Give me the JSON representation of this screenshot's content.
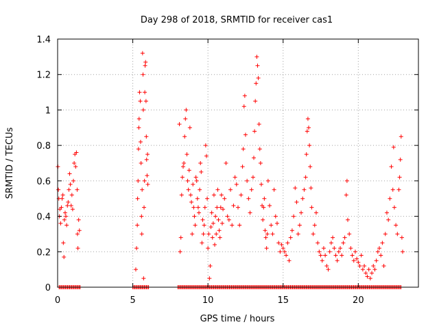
{
  "chart_data": {
    "type": "scatter",
    "title": "Day 298 of 2018, SRMTID for receiver cas1",
    "xlabel": "GPS time / hours",
    "ylabel": "SRMTID / TECUs",
    "xlim": [
      0,
      24
    ],
    "ylim": [
      0,
      1.4
    ],
    "xticks": [
      0,
      5,
      10,
      15,
      20
    ],
    "xtick_labels": [
      "0",
      "5",
      "10",
      "15",
      "20"
    ],
    "yticks": [
      0,
      0.2,
      0.4,
      0.6,
      0.8,
      1,
      1.2,
      1.4
    ],
    "ytick_labels": [
      "0",
      "0.2",
      "0.4",
      "0.6",
      "0.8",
      "1",
      "1.2",
      "1.4"
    ],
    "grid": true,
    "marker": "+",
    "color": "#ff0000",
    "series": [
      {
        "name": "SRMTID",
        "points": [
          [
            0.02,
            0.68
          ],
          [
            0.05,
            0.55
          ],
          [
            0.08,
            0.5
          ],
          [
            0.12,
            0.4
          ],
          [
            0.15,
            0.44
          ],
          [
            0.2,
            0.36
          ],
          [
            0.25,
            0.45
          ],
          [
            0.3,
            0.5
          ],
          [
            0.35,
            0.52
          ],
          [
            0.38,
            0.25
          ],
          [
            0.42,
            0.17
          ],
          [
            0.45,
            0.38
          ],
          [
            0.5,
            0.42
          ],
          [
            0.55,
            0.4
          ],
          [
            0.6,
            0.35
          ],
          [
            0.65,
            0.46
          ],
          [
            0.7,
            0.48
          ],
          [
            0.75,
            0.55
          ],
          [
            0.8,
            0.64
          ],
          [
            0.85,
            0.58
          ],
          [
            0.9,
            0.46
          ],
          [
            0.95,
            0.52
          ],
          [
            1.0,
            0.44
          ],
          [
            1.05,
            0.6
          ],
          [
            1.1,
            0.7
          ],
          [
            1.15,
            0.75
          ],
          [
            1.2,
            0.68
          ],
          [
            1.25,
            0.76
          ],
          [
            1.3,
            0.55
          ],
          [
            1.32,
            0.3
          ],
          [
            1.35,
            0.22
          ],
          [
            1.4,
            0.38
          ],
          [
            1.45,
            0.32
          ],
          [
            5.2,
            0.1
          ],
          [
            5.25,
            0.22
          ],
          [
            5.3,
            0.35
          ],
          [
            5.32,
            0.5
          ],
          [
            5.35,
            0.6
          ],
          [
            5.38,
            0.78
          ],
          [
            5.4,
            0.9
          ],
          [
            5.42,
            0.95
          ],
          [
            5.45,
            1.1
          ],
          [
            5.5,
            1.05
          ],
          [
            5.52,
            0.82
          ],
          [
            5.55,
            0.7
          ],
          [
            5.58,
            0.4
          ],
          [
            5.6,
            0.3
          ],
          [
            5.62,
            0.55
          ],
          [
            5.65,
            1.32
          ],
          [
            5.68,
            1.2
          ],
          [
            5.7,
            1.0
          ],
          [
            5.72,
            0.05
          ],
          [
            5.75,
            0.45
          ],
          [
            5.78,
            0.6
          ],
          [
            5.8,
            1.1
          ],
          [
            5.82,
            1.25
          ],
          [
            5.85,
            1.27
          ],
          [
            5.88,
            1.05
          ],
          [
            5.9,
            0.85
          ],
          [
            5.92,
            0.72
          ],
          [
            5.95,
            0.63
          ],
          [
            5.98,
            0.75
          ],
          [
            6.0,
            0.58
          ],
          [
            8.1,
            0.92
          ],
          [
            8.15,
            0.2
          ],
          [
            8.2,
            0.28
          ],
          [
            8.25,
            0.52
          ],
          [
            8.3,
            0.62
          ],
          [
            8.35,
            0.68
          ],
          [
            8.4,
            0.7
          ],
          [
            8.45,
            0.85
          ],
          [
            8.5,
            0.95
          ],
          [
            8.55,
            1.0
          ],
          [
            8.6,
            0.75
          ],
          [
            8.65,
            0.6
          ],
          [
            8.7,
            0.55
          ],
          [
            8.75,
            0.66
          ],
          [
            8.8,
            0.9
          ],
          [
            8.85,
            0.52
          ],
          [
            8.9,
            0.48
          ],
          [
            8.95,
            0.3
          ],
          [
            9.0,
            0.58
          ],
          [
            9.05,
            0.45
          ],
          [
            9.1,
            0.4
          ],
          [
            9.15,
            0.35
          ],
          [
            9.2,
            0.62
          ],
          [
            9.25,
            0.6
          ],
          [
            9.3,
            0.5
          ],
          [
            9.35,
            0.45
          ],
          [
            9.4,
            0.42
          ],
          [
            9.45,
            0.55
          ],
          [
            9.5,
            0.7
          ],
          [
            9.55,
            0.65
          ],
          [
            9.6,
            0.25
          ],
          [
            9.65,
            0.38
          ],
          [
            9.7,
            0.3
          ],
          [
            9.75,
            0.35
          ],
          [
            9.8,
            0.45
          ],
          [
            9.85,
            0.8
          ],
          [
            9.9,
            0.74
          ],
          [
            9.95,
            0.5
          ],
          [
            10.0,
            0.22
          ],
          [
            10.05,
            0.3
          ],
          [
            10.1,
            0.05
          ],
          [
            10.15,
            0.12
          ],
          [
            10.2,
            0.34
          ],
          [
            10.25,
            0.42
          ],
          [
            10.3,
            0.28
          ],
          [
            10.35,
            0.36
          ],
          [
            10.4,
            0.52
          ],
          [
            10.45,
            0.24
          ],
          [
            10.5,
            0.4
          ],
          [
            10.55,
            0.3
          ],
          [
            10.6,
            0.45
          ],
          [
            10.65,
            0.55
          ],
          [
            10.7,
            0.38
          ],
          [
            10.75,
            0.32
          ],
          [
            10.8,
            0.28
          ],
          [
            10.85,
            0.45
          ],
          [
            10.9,
            0.52
          ],
          [
            10.95,
            0.36
          ],
          [
            11.0,
            0.44
          ],
          [
            11.1,
            0.5
          ],
          [
            11.2,
            0.7
          ],
          [
            11.3,
            0.4
          ],
          [
            11.4,
            0.38
          ],
          [
            11.5,
            0.55
          ],
          [
            11.6,
            0.35
          ],
          [
            11.7,
            0.46
          ],
          [
            11.8,
            0.62
          ],
          [
            11.9,
            0.58
          ],
          [
            12.0,
            0.45
          ],
          [
            12.1,
            0.35
          ],
          [
            12.2,
            0.52
          ],
          [
            12.3,
            0.68
          ],
          [
            12.35,
            0.78
          ],
          [
            12.4,
            1.02
          ],
          [
            12.45,
            1.08
          ],
          [
            12.5,
            0.86
          ],
          [
            12.6,
            0.6
          ],
          [
            12.7,
            0.5
          ],
          [
            12.8,
            0.42
          ],
          [
            12.9,
            0.55
          ],
          [
            13.0,
            0.62
          ],
          [
            13.05,
            0.73
          ],
          [
            13.1,
            0.88
          ],
          [
            13.15,
            1.05
          ],
          [
            13.2,
            1.15
          ],
          [
            13.25,
            1.3
          ],
          [
            13.3,
            1.25
          ],
          [
            13.35,
            1.18
          ],
          [
            13.4,
            0.92
          ],
          [
            13.45,
            0.78
          ],
          [
            13.5,
            0.7
          ],
          [
            13.55,
            0.58
          ],
          [
            13.6,
            0.46
          ],
          [
            13.65,
            0.38
          ],
          [
            13.7,
            0.45
          ],
          [
            13.75,
            0.5
          ],
          [
            13.8,
            0.32
          ],
          [
            13.85,
            0.28
          ],
          [
            13.9,
            0.22
          ],
          [
            13.95,
            0.3
          ],
          [
            14.0,
            0.6
          ],
          [
            14.1,
            0.46
          ],
          [
            14.2,
            0.35
          ],
          [
            14.3,
            0.3
          ],
          [
            14.4,
            0.55
          ],
          [
            14.5,
            0.4
          ],
          [
            14.6,
            0.36
          ],
          [
            14.7,
            0.25
          ],
          [
            14.8,
            0.2
          ],
          [
            14.9,
            0.24
          ],
          [
            15.0,
            0.22
          ],
          [
            15.1,
            0.2
          ],
          [
            15.2,
            0.18
          ],
          [
            15.3,
            0.25
          ],
          [
            15.4,
            0.15
          ],
          [
            15.5,
            0.28
          ],
          [
            15.6,
            0.32
          ],
          [
            15.7,
            0.4
          ],
          [
            15.8,
            0.56
          ],
          [
            15.9,
            0.48
          ],
          [
            16.0,
            0.3
          ],
          [
            16.1,
            0.35
          ],
          [
            16.2,
            0.42
          ],
          [
            16.3,
            0.5
          ],
          [
            16.4,
            0.55
          ],
          [
            16.5,
            0.62
          ],
          [
            16.55,
            0.75
          ],
          [
            16.6,
            0.88
          ],
          [
            16.65,
            0.95
          ],
          [
            16.7,
            0.9
          ],
          [
            16.75,
            0.8
          ],
          [
            16.8,
            0.68
          ],
          [
            16.85,
            0.56
          ],
          [
            16.9,
            0.45
          ],
          [
            17.0,
            0.3
          ],
          [
            17.1,
            0.35
          ],
          [
            17.2,
            0.42
          ],
          [
            17.3,
            0.25
          ],
          [
            17.4,
            0.2
          ],
          [
            17.5,
            0.18
          ],
          [
            17.6,
            0.15
          ],
          [
            17.7,
            0.22
          ],
          [
            17.8,
            0.18
          ],
          [
            17.9,
            0.12
          ],
          [
            18.0,
            0.1
          ],
          [
            18.1,
            0.2
          ],
          [
            18.2,
            0.25
          ],
          [
            18.3,
            0.28
          ],
          [
            18.4,
            0.22
          ],
          [
            18.5,
            0.18
          ],
          [
            18.6,
            0.15
          ],
          [
            18.7,
            0.2
          ],
          [
            18.8,
            0.22
          ],
          [
            18.9,
            0.18
          ],
          [
            19.0,
            0.25
          ],
          [
            19.1,
            0.28
          ],
          [
            19.2,
            0.52
          ],
          [
            19.25,
            0.6
          ],
          [
            19.3,
            0.38
          ],
          [
            19.4,
            0.3
          ],
          [
            19.5,
            0.22
          ],
          [
            19.6,
            0.18
          ],
          [
            19.7,
            0.15
          ],
          [
            19.8,
            0.2
          ],
          [
            19.9,
            0.16
          ],
          [
            20.0,
            0.14
          ],
          [
            20.1,
            0.12
          ],
          [
            20.2,
            0.18
          ],
          [
            20.3,
            0.1
          ],
          [
            20.4,
            0.12
          ],
          [
            20.5,
            0.08
          ],
          [
            20.6,
            0.06
          ],
          [
            20.7,
            0.1
          ],
          [
            20.8,
            0.05
          ],
          [
            20.9,
            0.08
          ],
          [
            21.0,
            0.12
          ],
          [
            21.1,
            0.1
          ],
          [
            21.2,
            0.15
          ],
          [
            21.3,
            0.2
          ],
          [
            21.4,
            0.22
          ],
          [
            21.5,
            0.18
          ],
          [
            21.6,
            0.25
          ],
          [
            21.7,
            0.12
          ],
          [
            21.8,
            0.3
          ],
          [
            21.9,
            0.42
          ],
          [
            22.0,
            0.38
          ],
          [
            22.1,
            0.5
          ],
          [
            22.2,
            0.68
          ],
          [
            22.3,
            0.55
          ],
          [
            22.35,
            0.79
          ],
          [
            22.4,
            0.45
          ],
          [
            22.5,
            0.35
          ],
          [
            22.6,
            0.3
          ],
          [
            22.7,
            0.55
          ],
          [
            22.75,
            0.62
          ],
          [
            22.8,
            0.72
          ],
          [
            22.85,
            0.85
          ],
          [
            22.9,
            0.28
          ],
          [
            22.95,
            0.2
          ]
        ]
      }
    ],
    "zero_segments": [
      [
        0.1,
        1.5
      ],
      [
        5.0,
        6.1
      ],
      [
        8.0,
        22.9
      ]
    ]
  }
}
